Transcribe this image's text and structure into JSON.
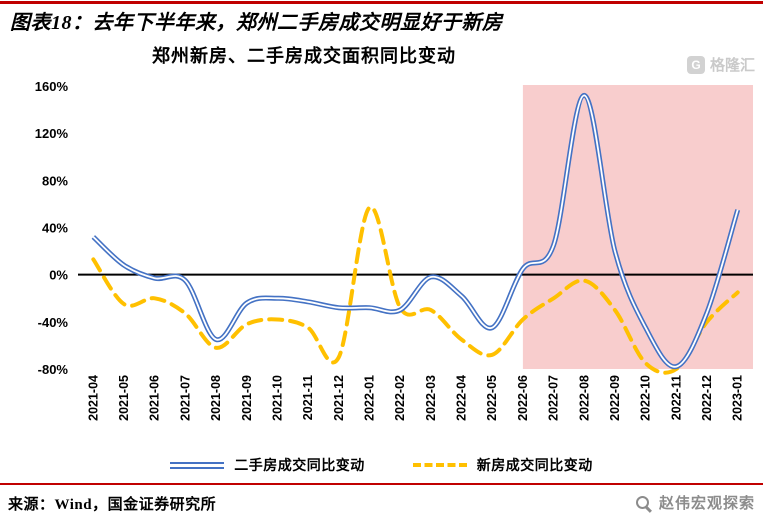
{
  "page": {
    "caption": "图表18：去年下半年来，郑州二手房成交明显好于新房",
    "source": "来源：Wind，国金证券研究所",
    "watermark_bottom": "赵伟宏观探索",
    "watermark_chart": "格隆汇",
    "watermark_chart_logo_letter": "G",
    "accent_red": "#C00000"
  },
  "chart_data": {
    "type": "line",
    "title": "郑州新房、二手房成交面积同比变动",
    "categories": [
      "2021-04",
      "2021-05",
      "2021-06",
      "2021-07",
      "2021-08",
      "2021-09",
      "2021-10",
      "2021-11",
      "2021-12",
      "2022-01",
      "2022-02",
      "2022-03",
      "2022-04",
      "2022-05",
      "2022-06",
      "2022-07",
      "2022-08",
      "2022-09",
      "2022-10",
      "2022-11",
      "2022-12",
      "2023-01"
    ],
    "series": [
      {
        "name": "二手房成交同比变动",
        "color": "#4472C4",
        "line_style": "double-solid",
        "values": [
          32,
          8,
          -3,
          -5,
          -55,
          -24,
          -20,
          -23,
          -28,
          -28,
          -30,
          -2,
          -18,
          -45,
          5,
          25,
          152,
          20,
          -45,
          -78,
          -32,
          55
        ]
      },
      {
        "name": "新房成交同比变动",
        "color": "#FFC000",
        "line_style": "dashed",
        "values": [
          13,
          -25,
          -20,
          -33,
          -62,
          -42,
          -38,
          -45,
          -70,
          57,
          -28,
          -30,
          -55,
          -68,
          -38,
          -20,
          -5,
          -30,
          -75,
          -80,
          -40,
          -15
        ]
      }
    ],
    "ylim": [
      -80,
      160
    ],
    "ytick_step": 40,
    "yticks": [
      "160%",
      "120%",
      "80%",
      "40%",
      "0%",
      "-40%",
      "-80%"
    ],
    "ytick_suffix": "%",
    "gridlines": false,
    "zero_axis": true,
    "legend_position": "bottom",
    "highlight": {
      "from": "2022-07",
      "to": "2023-01",
      "color": "#F8CDCD"
    }
  }
}
